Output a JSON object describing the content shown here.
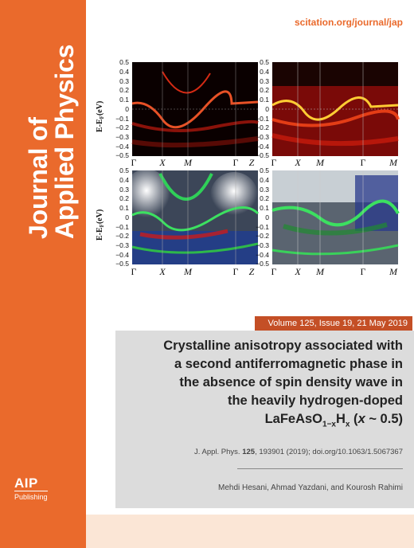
{
  "journal": {
    "title_line1": "Journal of",
    "title_line2": "Applied Physics",
    "url": "scitation.org/journal/jap"
  },
  "publisher": {
    "name": "AIP",
    "sub": "Publishing"
  },
  "issue": "Volume 125, Issue 19, 21 May 2019",
  "article": {
    "title_line1": "Crystalline anisotropy associated with",
    "title_line2": "a second antiferromagnetic phase in",
    "title_line3": "the absence of spin density wave in",
    "title_line4": "the heavily hydrogen-doped",
    "formula_a": "LaFeAsO",
    "formula_sub": "1−x",
    "formula_b": "H",
    "formula_sub2": "x",
    "formula_c": " (",
    "formula_x": "x",
    "formula_d": " ~ 0.5)",
    "citation_prefix": "J. Appl. Phys. ",
    "citation_vol": "125",
    "citation_rest": ", 193901 (2019); doi.org/10.1063/1.5067367",
    "authors": "Mehdi Hesani, Ahmad Yazdani, and Kourosh Rahimi"
  },
  "figure": {
    "y_ticks": [
      "0.5",
      "0.4",
      "0.3",
      "0.2",
      "0.1",
      "0",
      "−0.1",
      "−0.2",
      "−0.3",
      "−0.4",
      "−0.5"
    ],
    "ylabel": "E-E",
    "ylabel_sub": "F",
    "ylabel_unit": "(eV)",
    "x_labels_left": [
      "Γ",
      "X",
      "M",
      "Γ",
      "Z"
    ],
    "x_labels_right": [
      "Γ",
      "X",
      "M",
      "Γ",
      "M"
    ]
  },
  "colors": {
    "sidebar": "#ea6a2c",
    "issue_band": "#c44f26",
    "article_box": "#dcdcdc",
    "url": "#ea6a2c"
  }
}
